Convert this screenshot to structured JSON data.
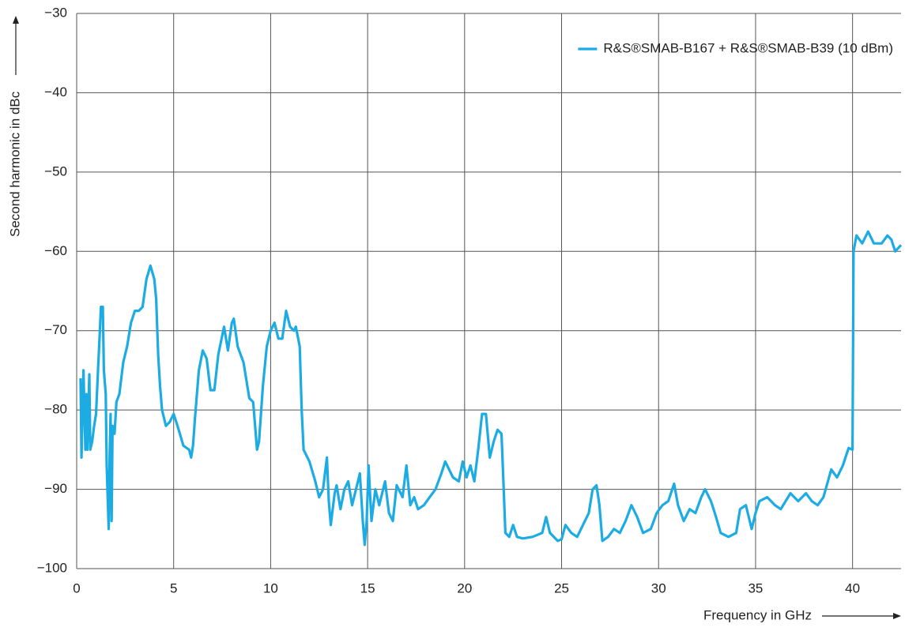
{
  "chart_data": {
    "type": "line",
    "xlabel": "Frequency in GHz",
    "ylabel": "Second harmonic in dBc",
    "xlim": [
      0,
      42.5
    ],
    "ylim": [
      -100,
      -30
    ],
    "xticks": [
      0,
      5,
      10,
      15,
      20,
      25,
      30,
      35,
      40
    ],
    "yticks": [
      {
        "value": -100,
        "label": "−100"
      },
      {
        "value": -90,
        "label": "−90"
      },
      {
        "value": -80,
        "label": "−80"
      },
      {
        "value": -70,
        "label": "−70"
      },
      {
        "value": -60,
        "label": "−60"
      },
      {
        "value": -50,
        "label": "−50"
      },
      {
        "value": -40,
        "label": "−40"
      },
      {
        "value": -30,
        "label": "−30"
      }
    ],
    "grid": true,
    "legend": "upper right",
    "x": [
      0.2,
      0.25,
      0.3,
      0.35,
      0.45,
      0.5,
      0.55,
      0.65,
      0.7,
      0.8,
      0.9,
      1.0,
      1.1,
      1.2,
      1.25,
      1.35,
      1.4,
      1.5,
      1.55,
      1.65,
      1.7,
      1.75,
      1.8,
      1.85,
      1.95,
      2.05,
      2.2,
      2.4,
      2.6,
      2.8,
      3.0,
      3.2,
      3.4,
      3.6,
      3.8,
      4.0,
      4.1,
      4.2,
      4.3,
      4.4,
      4.6,
      4.8,
      5.0,
      5.2,
      5.5,
      5.8,
      5.9,
      6.0,
      6.1,
      6.3,
      6.5,
      6.7,
      6.9,
      7.1,
      7.3,
      7.6,
      7.8,
      8.0,
      8.1,
      8.3,
      8.6,
      8.9,
      9.1,
      9.3,
      9.4,
      9.6,
      9.8,
      10.0,
      10.2,
      10.4,
      10.6,
      10.8,
      11.0,
      11.2,
      11.3,
      11.5,
      11.6,
      11.7,
      12.0,
      12.3,
      12.5,
      12.7,
      12.9,
      13.0,
      13.1,
      13.3,
      13.4,
      13.6,
      13.8,
      14.0,
      14.2,
      14.4,
      14.6,
      14.75,
      14.85,
      14.95,
      15.05,
      15.2,
      15.4,
      15.6,
      15.9,
      16.1,
      16.3,
      16.5,
      16.8,
      17.0,
      17.2,
      17.4,
      17.6,
      17.9,
      18.2,
      18.5,
      18.8,
      19.0,
      19.4,
      19.7,
      19.9,
      20.1,
      20.3,
      20.5,
      20.7,
      20.9,
      21.1,
      21.3,
      21.5,
      21.7,
      21.9,
      22.0,
      22.1,
      22.3,
      22.5,
      22.7,
      23.0,
      23.5,
      24.0,
      24.2,
      24.4,
      24.8,
      25.0,
      25.2,
      25.5,
      25.8,
      26.0,
      26.4,
      26.6,
      26.8,
      26.95,
      27.1,
      27.4,
      27.7,
      28.0,
      28.3,
      28.6,
      28.9,
      29.2,
      29.6,
      29.9,
      30.2,
      30.5,
      30.8,
      31.0,
      31.3,
      31.6,
      31.9,
      32.2,
      32.4,
      32.7,
      32.9,
      33.2,
      33.6,
      34.0,
      34.2,
      34.5,
      34.8,
      35.0,
      35.2,
      35.6,
      36.0,
      36.3,
      36.8,
      37.2,
      37.6,
      37.9,
      38.2,
      38.5,
      38.9,
      39.2,
      39.5,
      39.8,
      40.0,
      40.05,
      40.2,
      40.5,
      40.8,
      41.1,
      41.5,
      41.8,
      42.0,
      42.2,
      42.5
    ],
    "series": [
      {
        "name": "R&S®SMAB-B167 + R&S®SMAB-B39 (10 dBm)",
        "color": "#1cace3",
        "values": [
          -76,
          -86,
          -80,
          -75,
          -85,
          -78,
          -85,
          -75.5,
          -85,
          -84,
          -82,
          -80.5,
          -75,
          -70,
          -67,
          -67,
          -75,
          -78,
          -87,
          -95,
          -86,
          -80.5,
          -94,
          -82,
          -83,
          -79,
          -78,
          -74,
          -72,
          -69,
          -67.5,
          -67.5,
          -67,
          -63.5,
          -61.8,
          -63.5,
          -66,
          -73,
          -77,
          -80,
          -82,
          -81.5,
          -80.5,
          -82,
          -84.5,
          -85,
          -86,
          -84.5,
          -81,
          -75,
          -72.5,
          -73.5,
          -77.5,
          -77.5,
          -73,
          -69.5,
          -72.5,
          -69,
          -68.5,
          -72,
          -74,
          -78.5,
          -79,
          -85,
          -84,
          -77,
          -72,
          -70,
          -69,
          -71,
          -71,
          -67.5,
          -69.5,
          -70,
          -69.5,
          -72,
          -80,
          -85,
          -86.5,
          -89,
          -91,
          -90,
          -86,
          -91.5,
          -94.5,
          -90.5,
          -89.5,
          -92.5,
          -90,
          -89,
          -92,
          -90,
          -88,
          -94,
          -97,
          -94,
          -87,
          -94,
          -90,
          -92,
          -89,
          -93,
          -94,
          -89.5,
          -91,
          -87,
          -92,
          -91,
          -92.5,
          -92,
          -91,
          -90,
          -88,
          -86.5,
          -88.5,
          -89,
          -86.5,
          -88.5,
          -87,
          -89,
          -85,
          -80.5,
          -80.5,
          -86,
          -84,
          -82.5,
          -83,
          -89,
          -95.5,
          -96,
          -94.5,
          -96,
          -96.2,
          -96,
          -95.5,
          -93.5,
          -95.5,
          -96.5,
          -96.3,
          -94.5,
          -95.5,
          -96,
          -95,
          -93,
          -90,
          -89.5,
          -92,
          -96.5,
          -96,
          -95,
          -95.5,
          -94,
          -92,
          -93.5,
          -95.5,
          -95,
          -93,
          -92,
          -91.5,
          -89.3,
          -92,
          -94,
          -92.5,
          -93,
          -91,
          -90,
          -91.5,
          -93,
          -95.5,
          -96,
          -95.5,
          -92.5,
          -92,
          -95,
          -93,
          -91.5,
          -91,
          -92,
          -92.5,
          -90.5,
          -91.5,
          -90.5,
          -91.5,
          -92,
          -91,
          -87.5,
          -88.5,
          -87,
          -84.8,
          -85,
          -60,
          -58,
          -59,
          -57.5,
          -59,
          -59,
          -58,
          -58.5,
          -60,
          -59.2
        ]
      }
    ]
  }
}
